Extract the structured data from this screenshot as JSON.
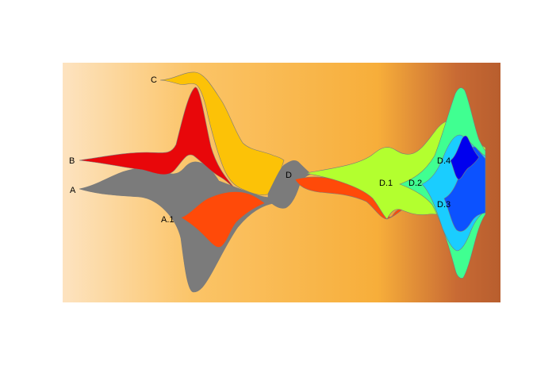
{
  "chart_data": {
    "type": "area",
    "subtype": "fishplot",
    "title": "",
    "xlabel": "",
    "ylabel": "",
    "background": {
      "type": "gradient",
      "colors": [
        "#fde3c0",
        "#fbc467",
        "#f7ae3a",
        "#c86a34",
        "#b85e2e"
      ]
    },
    "grid": false,
    "legend": "none",
    "series": [
      {
        "name": "A",
        "color": "#7b7b7b"
      },
      {
        "name": "B",
        "color": "#e8070a"
      },
      {
        "name": "C",
        "color": "#fcc207"
      },
      {
        "name": "A.1",
        "color": "#ff4a09"
      },
      {
        "name": "D",
        "color": "#7b7b7b"
      },
      {
        "name": "D.1",
        "color": "#b3ff2f"
      },
      {
        "name": "D.2",
        "color": "#40ff91"
      },
      {
        "name": "D.3",
        "color": "#1acdff"
      },
      {
        "name": "D.4",
        "color": "#0c52ff"
      },
      {
        "name": "",
        "color": "#0000ee"
      }
    ]
  }
}
